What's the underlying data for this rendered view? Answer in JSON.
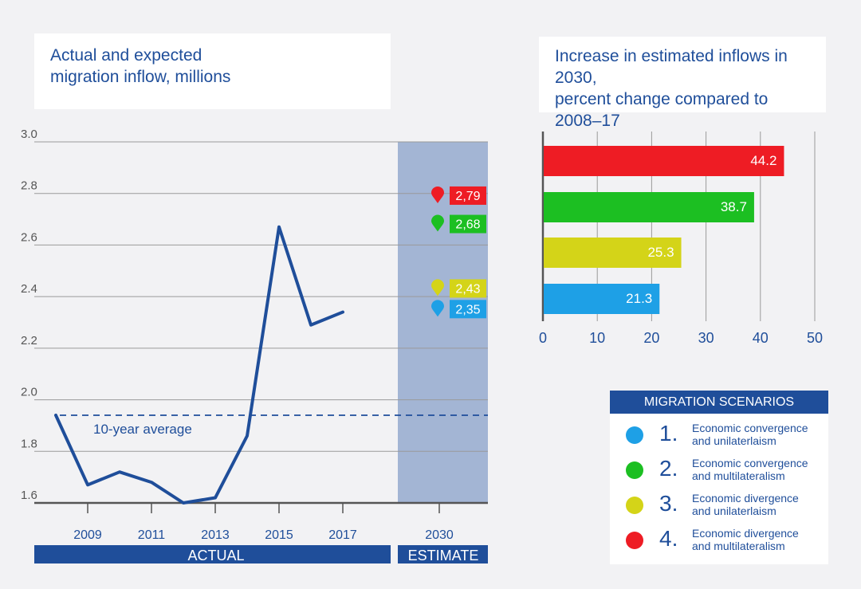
{
  "left_title": {
    "line1": "Actual and expected",
    "line2": "migration inflow, millions"
  },
  "right_title": {
    "line1": "Increase in estimated inflows in 2030,",
    "line2": "percent change compared to",
    "line3": "2008–17"
  },
  "colors": {
    "navy": "#1f4e9a",
    "red": "#ee1c24",
    "green": "#1cbf22",
    "yellow": "#d4d418",
    "blue": "#1ea0e6",
    "estimate_band": "#a3b5d4"
  },
  "chart_data": [
    {
      "type": "line",
      "title": "Actual and expected migration inflow, millions",
      "y_ticks": [
        "3.0",
        "2.8",
        "2.6",
        "2.4",
        "2.2",
        "2.0",
        "1.8",
        "1.6"
      ],
      "ylim": [
        1.6,
        3.0
      ],
      "x_ticks": [
        "2009",
        "2011",
        "2013",
        "2015",
        "2017"
      ],
      "series": [
        {
          "name": "Actual",
          "x": [
            2008,
            2009,
            2010,
            2011,
            2012,
            2013,
            2014,
            2015,
            2016,
            2017
          ],
          "values": [
            1.94,
            1.67,
            1.72,
            1.68,
            1.6,
            1.62,
            1.86,
            2.67,
            2.29,
            2.34
          ]
        }
      ],
      "average": {
        "label": "10-year average",
        "value": 1.94
      },
      "section_labels": {
        "actual": "ACTUAL",
        "estimate": "ESTIMATE"
      },
      "estimate_year": "2030",
      "estimates": [
        {
          "label": "2,79",
          "value": 2.79,
          "color": "#ee1c24"
        },
        {
          "label": "2,68",
          "value": 2.68,
          "color": "#1cbf22"
        },
        {
          "label": "2,43",
          "value": 2.43,
          "color": "#d4d418"
        },
        {
          "label": "2,35",
          "value": 2.35,
          "color": "#1ea0e6"
        }
      ]
    },
    {
      "type": "bar",
      "title": "Increase in estimated inflows in 2030, percent change compared to 2008–17",
      "orientation": "horizontal",
      "x_ticks": [
        "0",
        "10",
        "20",
        "30",
        "40",
        "50"
      ],
      "xlim": [
        0,
        50
      ],
      "bars": [
        {
          "label": "44.2",
          "value": 44.2,
          "color": "#ee1c24"
        },
        {
          "label": "38.7",
          "value": 38.7,
          "color": "#1cbf22"
        },
        {
          "label": "25.3",
          "value": 25.3,
          "color": "#d4d418"
        },
        {
          "label": "21.3",
          "value": 21.3,
          "color": "#1ea0e6"
        }
      ]
    }
  ],
  "legend": {
    "title": "MIGRATION SCENARIOS",
    "items": [
      {
        "num": "1.",
        "line1": "Economic convergence",
        "line2": "and unilaterlaism",
        "color": "#1ea0e6"
      },
      {
        "num": "2.",
        "line1": "Economic convergence",
        "line2": "and multilateralism",
        "color": "#1cbf22"
      },
      {
        "num": "3.",
        "line1": "Economic divergence",
        "line2": "and unilaterlaism",
        "color": "#d4d418"
      },
      {
        "num": "4.",
        "line1": "Economic divergence",
        "line2": "and multilateralism",
        "color": "#ee1c24"
      }
    ]
  }
}
